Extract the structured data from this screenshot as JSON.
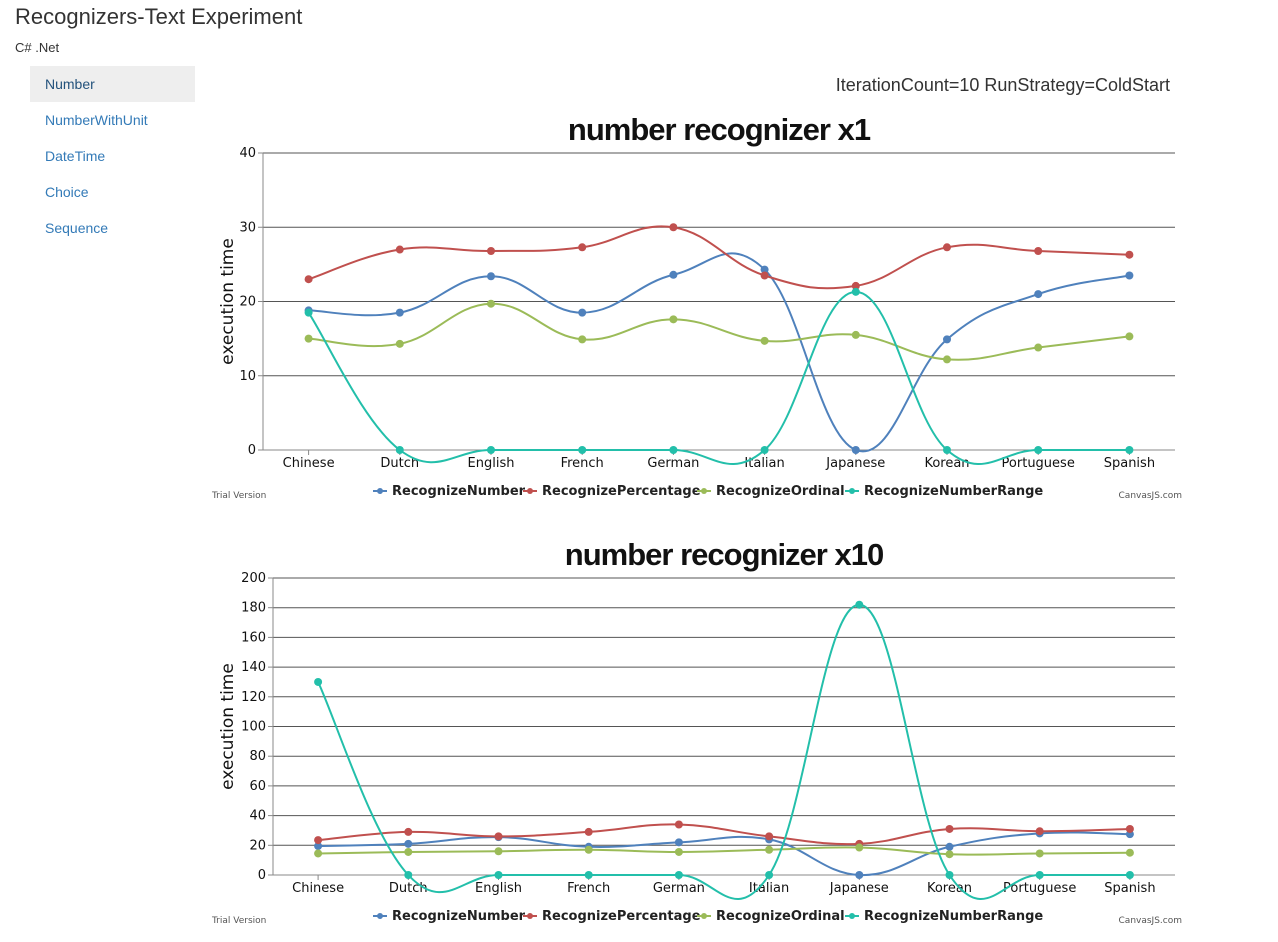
{
  "app": {
    "title": "Recognizers-Text Experiment",
    "platform": "C# .Net"
  },
  "nav": {
    "items": [
      {
        "label": "Number",
        "active": true
      },
      {
        "label": "NumberWithUnit",
        "active": false
      },
      {
        "label": "DateTime",
        "active": false
      },
      {
        "label": "Choice",
        "active": false
      },
      {
        "label": "Sequence",
        "active": false
      }
    ]
  },
  "run_info": "IterationCount=10 RunStrategy=ColdStart",
  "watermark": {
    "trial": "Trial Version",
    "brand": "CanvasJS.com"
  },
  "chart_data": [
    {
      "type": "line",
      "smooth": true,
      "title": "number recognizer x1",
      "ylabel": "execution time",
      "xlabel": "",
      "ylim": [
        0,
        40
      ],
      "ytick_step": 10,
      "grid": true,
      "legend_position": "bottom",
      "categories": [
        "Chinese",
        "Dutch",
        "English",
        "French",
        "German",
        "Italian",
        "Japanese",
        "Korean",
        "Portuguese",
        "Spanish"
      ],
      "series": [
        {
          "name": "RecognizeNumber",
          "color": "#4f81bc",
          "values": [
            18.8,
            18.5,
            23.4,
            18.5,
            23.6,
            24.3,
            0,
            14.9,
            21.0,
            23.5
          ]
        },
        {
          "name": "RecognizePercentage",
          "color": "#c0504e",
          "values": [
            23.0,
            27.0,
            26.8,
            27.3,
            30.0,
            23.5,
            22.1,
            27.3,
            26.8,
            26.3
          ]
        },
        {
          "name": "RecognizeOrdinal",
          "color": "#9bbb58",
          "values": [
            15.0,
            14.3,
            19.7,
            14.9,
            17.6,
            14.7,
            15.5,
            12.2,
            13.8,
            15.3
          ]
        },
        {
          "name": "RecognizeNumberRange",
          "color": "#23bfaa",
          "values": [
            18.5,
            0,
            0,
            0,
            0,
            0,
            21.3,
            0,
            0,
            0
          ]
        }
      ]
    },
    {
      "type": "line",
      "smooth": true,
      "title": "number recognizer x10",
      "ylabel": "execution time",
      "xlabel": "",
      "ylim": [
        0,
        200
      ],
      "ytick_step": 20,
      "grid": true,
      "legend_position": "bottom",
      "categories": [
        "Chinese",
        "Dutch",
        "English",
        "French",
        "German",
        "Italian",
        "Japanese",
        "Korean",
        "Portuguese",
        "Spanish"
      ],
      "series": [
        {
          "name": "RecognizeNumber",
          "color": "#4f81bc",
          "values": [
            19.5,
            21.0,
            25.5,
            19.0,
            22.0,
            24.0,
            0,
            19.0,
            28.0,
            27.5
          ]
        },
        {
          "name": "RecognizePercentage",
          "color": "#c0504e",
          "values": [
            23.5,
            29.0,
            26.0,
            29.0,
            34.0,
            26.0,
            21.0,
            31.0,
            29.5,
            31.0
          ]
        },
        {
          "name": "RecognizeOrdinal",
          "color": "#9bbb58",
          "values": [
            14.5,
            15.5,
            16.0,
            17.0,
            15.5,
            17.0,
            18.5,
            14.0,
            14.5,
            15.0
          ]
        },
        {
          "name": "RecognizeNumberRange",
          "color": "#23bfaa",
          "values": [
            130,
            0,
            0,
            0,
            0,
            0,
            182,
            0,
            0,
            0
          ]
        }
      ]
    }
  ]
}
